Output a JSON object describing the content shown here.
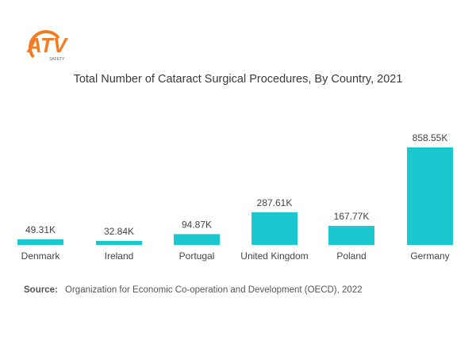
{
  "logo": {
    "text": "ATV",
    "subtext": "SAFETY"
  },
  "chart_data": {
    "type": "bar",
    "title": "Total Number of Cataract Surgical Procedures, By Country, 2021",
    "categories": [
      "Denmark",
      "Ireland",
      "Portugal",
      "United Kingdom",
      "Poland",
      "Germany"
    ],
    "values": [
      49.31,
      32.84,
      94.87,
      287.61,
      167.77,
      858.55
    ],
    "value_labels": [
      "49.31K",
      "32.84K",
      "94.87K",
      "287.61K",
      "167.77K",
      "858.55K"
    ],
    "unit": "K",
    "ylim": [
      0,
      858.55
    ],
    "xlabel": "",
    "ylabel": "",
    "grid": false,
    "legend": "none",
    "bar_color": "#1cc8cf"
  },
  "source": {
    "label": "Source:",
    "text": "Organization for Economic Co-operation and Development (OECD), 2022"
  }
}
